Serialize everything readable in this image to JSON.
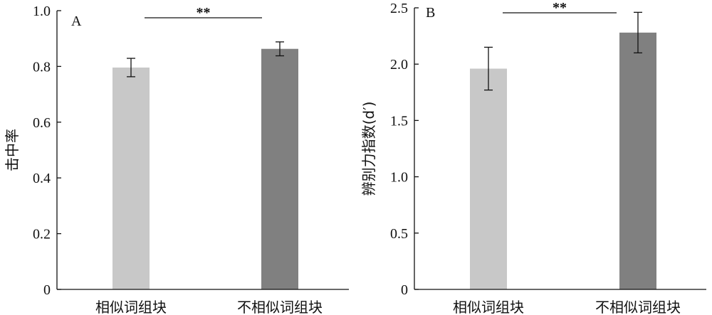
{
  "chart_data": [
    {
      "type": "bar",
      "panel_label": "A",
      "categories": [
        "相似词组块",
        "不相似词组块"
      ],
      "values": [
        0.796,
        0.863
      ],
      "errors": [
        0.033,
        0.025
      ],
      "colors": [
        "#c8c8c8",
        "#808080"
      ],
      "ylabel": "击中率",
      "ylim": [
        0,
        1.0
      ],
      "yticks": [
        0,
        0.2,
        0.4,
        0.6,
        0.8,
        1.0
      ],
      "ytick_labels": [
        "0",
        "0.2",
        "0.4",
        "0.6",
        "0.8",
        "1.0"
      ],
      "significance": "**"
    },
    {
      "type": "bar",
      "panel_label": "B",
      "categories": [
        "相似词组块",
        "不相似词组块"
      ],
      "values": [
        1.96,
        2.28
      ],
      "errors": [
        0.19,
        0.18
      ],
      "colors": [
        "#c8c8c8",
        "#808080"
      ],
      "ylabel": "辨别力指数(d′)",
      "ylim": [
        0,
        2.5
      ],
      "yticks": [
        0,
        0.5,
        1.0,
        1.5,
        2.0,
        2.5
      ],
      "ytick_labels": [
        "0",
        "0.5",
        "1.0",
        "1.5",
        "2.0",
        "2.5"
      ],
      "significance": "**"
    }
  ]
}
